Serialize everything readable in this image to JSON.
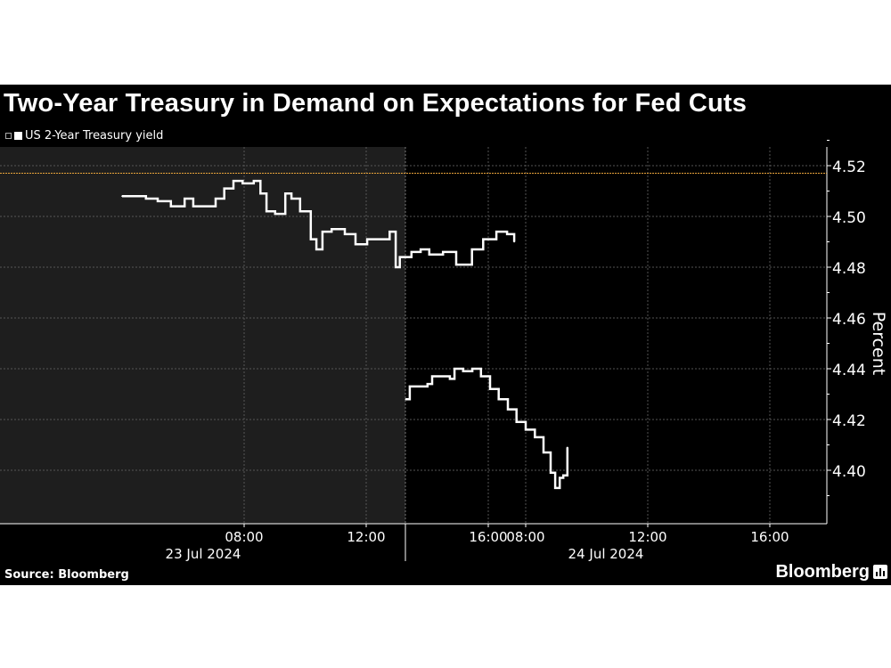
{
  "title": "Two-Year Treasury in Demand on Expectations for Fed Cuts",
  "source": "Source: Bloomberg",
  "brand": "Bloomberg",
  "colors": {
    "background": "#000000",
    "shaded": "#1e1e1e",
    "line": "#ffffff",
    "reference_line": "#e8a33a",
    "grid": "#555555"
  },
  "chart_data": {
    "type": "line",
    "title": "Two-Year Treasury in Demand on Expectations for Fed Cuts",
    "ylabel": "Percent",
    "ylim": [
      4.38,
      4.527
    ],
    "yticks": [
      "4.40",
      "4.42",
      "4.44",
      "4.46",
      "4.48",
      "4.50",
      "4.52"
    ],
    "xticks": [
      {
        "day": 0,
        "label": "08:00"
      },
      {
        "day": 0,
        "label": "12:00"
      },
      {
        "day": 0,
        "label": "16:00"
      },
      {
        "day": 1,
        "label": "08:00"
      },
      {
        "day": 1,
        "label": "12:00"
      },
      {
        "day": 1,
        "label": "16:00"
      }
    ],
    "days": [
      "23 Jul 2024",
      "24 Jul 2024"
    ],
    "grid": true,
    "legend_position": "top-left",
    "reference_line": 4.517,
    "series": [
      {
        "name": "US 2-Year Treasury yield",
        "step": true,
        "points": [
          {
            "day": 0,
            "t": "04:00",
            "v": 4.508
          },
          {
            "day": 0,
            "t": "04:47",
            "v": 4.507
          },
          {
            "day": 0,
            "t": "05:10",
            "v": 4.506
          },
          {
            "day": 0,
            "t": "05:36",
            "v": 4.504
          },
          {
            "day": 0,
            "t": "06:03",
            "v": 4.507
          },
          {
            "day": 0,
            "t": "06:20",
            "v": 4.504
          },
          {
            "day": 0,
            "t": "06:46",
            "v": 4.504
          },
          {
            "day": 0,
            "t": "07:04",
            "v": 4.507
          },
          {
            "day": 0,
            "t": "07:21",
            "v": 4.511
          },
          {
            "day": 0,
            "t": "07:39",
            "v": 4.514
          },
          {
            "day": 0,
            "t": "07:57",
            "v": 4.513
          },
          {
            "day": 0,
            "t": "08:19",
            "v": 4.514
          },
          {
            "day": 0,
            "t": "08:32",
            "v": 4.509
          },
          {
            "day": 0,
            "t": "08:44",
            "v": 4.502
          },
          {
            "day": 0,
            "t": "09:01",
            "v": 4.501
          },
          {
            "day": 0,
            "t": "09:21",
            "v": 4.509
          },
          {
            "day": 0,
            "t": "09:33",
            "v": 4.507
          },
          {
            "day": 0,
            "t": "09:50",
            "v": 4.502
          },
          {
            "day": 0,
            "t": "10:11",
            "v": 4.491
          },
          {
            "day": 0,
            "t": "10:22",
            "v": 4.487
          },
          {
            "day": 0,
            "t": "10:34",
            "v": 4.494
          },
          {
            "day": 0,
            "t": "10:52",
            "v": 4.495
          },
          {
            "day": 0,
            "t": "11:18",
            "v": 4.493
          },
          {
            "day": 0,
            "t": "11:39",
            "v": 4.489
          },
          {
            "day": 0,
            "t": "12:02",
            "v": 4.491
          },
          {
            "day": 0,
            "t": "12:28",
            "v": 4.491
          },
          {
            "day": 0,
            "t": "12:46",
            "v": 4.494
          },
          {
            "day": 0,
            "t": "12:54",
            "v": 4.494
          },
          {
            "day": 0,
            "t": "12:58",
            "v": 4.48
          },
          {
            "day": 0,
            "t": "13:06",
            "v": 4.484
          },
          {
            "day": 0,
            "t": "13:29",
            "v": 4.486
          },
          {
            "day": 0,
            "t": "13:47",
            "v": 4.487
          },
          {
            "day": 0,
            "t": "14:04",
            "v": 4.485
          },
          {
            "day": 0,
            "t": "14:31",
            "v": 4.486
          },
          {
            "day": 0,
            "t": "14:57",
            "v": 4.481
          },
          {
            "day": 0,
            "t": "15:14",
            "v": 4.481
          },
          {
            "day": 0,
            "t": "15:28",
            "v": 4.487
          },
          {
            "day": 0,
            "t": "15:50",
            "v": 4.491
          },
          {
            "day": 0,
            "t": "16:16",
            "v": 4.494
          },
          {
            "day": 0,
            "t": "16:37",
            "v": 4.493
          },
          {
            "day": 0,
            "t": "16:51",
            "v": 4.49
          },
          {
            "day": 1,
            "t": "04:04",
            "v": 4.428
          },
          {
            "day": 1,
            "t": "04:12",
            "v": 4.433
          },
          {
            "day": 1,
            "t": "04:30",
            "v": 4.433
          },
          {
            "day": 1,
            "t": "04:47",
            "v": 4.434
          },
          {
            "day": 1,
            "t": "04:56",
            "v": 4.437
          },
          {
            "day": 1,
            "t": "05:13",
            "v": 4.437
          },
          {
            "day": 1,
            "t": "05:31",
            "v": 4.436
          },
          {
            "day": 1,
            "t": "05:40",
            "v": 4.44
          },
          {
            "day": 1,
            "t": "05:57",
            "v": 4.439
          },
          {
            "day": 1,
            "t": "06:15",
            "v": 4.44
          },
          {
            "day": 1,
            "t": "06:32",
            "v": 4.437
          },
          {
            "day": 1,
            "t": "06:50",
            "v": 4.432
          },
          {
            "day": 1,
            "t": "07:07",
            "v": 4.428
          },
          {
            "day": 1,
            "t": "07:25",
            "v": 4.424
          },
          {
            "day": 1,
            "t": "07:42",
            "v": 4.419
          },
          {
            "day": 1,
            "t": "08:00",
            "v": 4.416
          },
          {
            "day": 1,
            "t": "08:18",
            "v": 4.413
          },
          {
            "day": 1,
            "t": "08:35",
            "v": 4.407
          },
          {
            "day": 1,
            "t": "08:49",
            "v": 4.399
          },
          {
            "day": 1,
            "t": "08:58",
            "v": 4.393
          },
          {
            "day": 1,
            "t": "09:07",
            "v": 4.397
          },
          {
            "day": 1,
            "t": "09:14",
            "v": 4.398
          },
          {
            "day": 1,
            "t": "09:22",
            "v": 4.409
          }
        ]
      }
    ]
  }
}
